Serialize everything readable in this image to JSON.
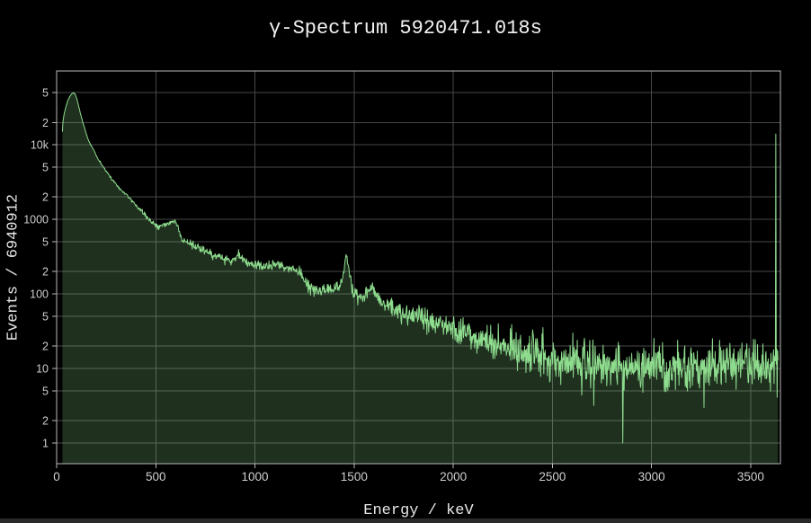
{
  "colors": {
    "background": "#000000",
    "grid": "#474747",
    "frame": "#b8b8b8",
    "tick_label": "#cfcfcf",
    "title_text": "#f2f2f2",
    "axis_title_text": "#e8e8e8",
    "trace_line": "#8edc8e",
    "trace_fill": "rgba(142,220,142,0.22)",
    "scrollbar": "#2a2a2a"
  },
  "chart_data": {
    "type": "area",
    "title": "γ-Spectrum 5920471.018s",
    "xlabel": "Energy / keV",
    "ylabel": "Events / 6940912",
    "grid": true,
    "legend": "none",
    "x_scale": "linear",
    "y_scale": "log",
    "x_range": [
      0,
      3650
    ],
    "y_range": [
      0.53,
      98000
    ],
    "x_ticks": [
      {
        "v": 0,
        "label": "0"
      },
      {
        "v": 500,
        "label": "500"
      },
      {
        "v": 1000,
        "label": "1000"
      },
      {
        "v": 1500,
        "label": "1500"
      },
      {
        "v": 2000,
        "label": "2000"
      },
      {
        "v": 2500,
        "label": "2500"
      },
      {
        "v": 3000,
        "label": "3000"
      },
      {
        "v": 3500,
        "label": "3500"
      }
    ],
    "y_ticks": [
      {
        "v": 1,
        "label": "1"
      },
      {
        "v": 2,
        "label": "2"
      },
      {
        "v": 5,
        "label": "5"
      },
      {
        "v": 10,
        "label": "10"
      },
      {
        "v": 20,
        "label": "2"
      },
      {
        "v": 50,
        "label": "5"
      },
      {
        "v": 100,
        "label": "100"
      },
      {
        "v": 200,
        "label": "2"
      },
      {
        "v": 500,
        "label": "5"
      },
      {
        "v": 1000,
        "label": "1000"
      },
      {
        "v": 2000,
        "label": "2"
      },
      {
        "v": 5000,
        "label": "5"
      },
      {
        "v": 10000,
        "label": "10k"
      },
      {
        "v": 20000,
        "label": "2"
      },
      {
        "v": 50000,
        "label": "5"
      }
    ],
    "series": [
      {
        "name": "gamma-spectrum",
        "line_color": "#8edc8e",
        "fill_color": "rgba(142,220,142,0.22)",
        "bin_kev": 2.25,
        "start_kev": 29,
        "end_kev": 3640,
        "noise_seed": 42,
        "anchors_kev_counts": [
          [
            29,
            15000
          ],
          [
            32,
            21000
          ],
          [
            38,
            26500
          ],
          [
            46,
            32000
          ],
          [
            56,
            39000
          ],
          [
            66,
            44500
          ],
          [
            76,
            48500
          ],
          [
            85,
            50500
          ],
          [
            93,
            48000
          ],
          [
            101,
            42000
          ],
          [
            110,
            34000
          ],
          [
            120,
            26500
          ],
          [
            130,
            21000
          ],
          [
            140,
            17000
          ],
          [
            150,
            13800
          ],
          [
            162,
            11300
          ],
          [
            175,
            9700
          ],
          [
            188,
            8500
          ],
          [
            200,
            7200
          ],
          [
            212,
            6200
          ],
          [
            225,
            5500
          ],
          [
            240,
            4850
          ],
          [
            255,
            4250
          ],
          [
            270,
            3700
          ],
          [
            288,
            3250
          ],
          [
            305,
            2850
          ],
          [
            322,
            2520
          ],
          [
            340,
            2280
          ],
          [
            355,
            2120
          ],
          [
            370,
            1900
          ],
          [
            385,
            1700
          ],
          [
            400,
            1540
          ],
          [
            420,
            1350
          ],
          [
            445,
            1150
          ],
          [
            470,
            990
          ],
          [
            495,
            850
          ],
          [
            515,
            810
          ],
          [
            540,
            840
          ],
          [
            560,
            880
          ],
          [
            578,
            935
          ],
          [
            595,
            935
          ],
          [
            610,
            850
          ],
          [
            622,
            620
          ],
          [
            638,
            520
          ],
          [
            665,
            480
          ],
          [
            695,
            450
          ],
          [
            725,
            410
          ],
          [
            755,
            370
          ],
          [
            785,
            340
          ],
          [
            815,
            312
          ],
          [
            845,
            296
          ],
          [
            875,
            284
          ],
          [
            900,
            292
          ],
          [
            915,
            358
          ],
          [
            932,
            298
          ],
          [
            960,
            268
          ],
          [
            990,
            250
          ],
          [
            1020,
            240
          ],
          [
            1055,
            230
          ],
          [
            1085,
            238
          ],
          [
            1115,
            252
          ],
          [
            1140,
            235
          ],
          [
            1170,
            222
          ],
          [
            1200,
            212
          ],
          [
            1228,
            196
          ],
          [
            1248,
            152
          ],
          [
            1268,
            126
          ],
          [
            1295,
            116
          ],
          [
            1340,
            110
          ],
          [
            1385,
            112
          ],
          [
            1420,
            122
          ],
          [
            1438,
            152
          ],
          [
            1450,
            235
          ],
          [
            1460,
            348
          ],
          [
            1471,
            240
          ],
          [
            1483,
            152
          ],
          [
            1498,
            106
          ],
          [
            1518,
            89
          ],
          [
            1545,
            91
          ],
          [
            1572,
            108
          ],
          [
            1590,
            127
          ],
          [
            1606,
            102
          ],
          [
            1622,
            84
          ],
          [
            1650,
            74
          ],
          [
            1690,
            65
          ],
          [
            1740,
            57
          ],
          [
            1800,
            50
          ],
          [
            1870,
            44
          ],
          [
            1940,
            38
          ],
          [
            2010,
            33
          ],
          [
            2090,
            28
          ],
          [
            2170,
            24
          ],
          [
            2250,
            20.5
          ],
          [
            2330,
            17.5
          ],
          [
            2410,
            15.5
          ],
          [
            2490,
            13.8
          ],
          [
            2560,
            13
          ],
          [
            2614,
            13.4
          ],
          [
            2660,
            12.4
          ],
          [
            2730,
            11.4
          ],
          [
            2820,
            11
          ],
          [
            2920,
            10.6
          ],
          [
            3020,
            10.4
          ],
          [
            3120,
            10.5
          ],
          [
            3220,
            10.8
          ],
          [
            3320,
            11
          ],
          [
            3420,
            11
          ],
          [
            3520,
            11
          ],
          [
            3640,
            11
          ]
        ],
        "outliers_kev_counts": [
          [
            2604,
            30
          ],
          [
            2708,
            3.2
          ],
          [
            2856,
            1
          ],
          [
            3265,
            3
          ],
          [
            3627,
            14000
          ]
        ]
      }
    ]
  }
}
